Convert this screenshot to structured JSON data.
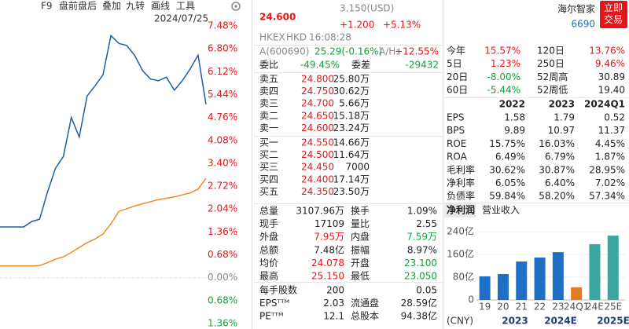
{
  "toolbar": {
    "items": [
      "F9",
      "盘前盘后",
      "叠加",
      "九转",
      "画线",
      "工具"
    ],
    "date": "2024/07/25"
  },
  "quote": {
    "price": "24.600",
    "change": "+1.200",
    "change_pct": "+5.13%",
    "usd": "3.150(USD)",
    "market": "HKEX",
    "currency": "HKD",
    "time": "16:08:28",
    "a_code": "A(600690)",
    "a_price": "25.29(-0.16%)",
    "ah_label": "A/H:",
    "ah_premium": "+12.55%",
    "wb_label": "委比",
    "wb": "-49.45%",
    "wc_label": "委差",
    "wc": "-29432"
  },
  "order_book": {
    "sell": [
      [
        "卖五",
        "24.800",
        "25.80万"
      ],
      [
        "卖四",
        "24.750",
        "30.62万"
      ],
      [
        "卖三",
        "24.700",
        "5.66万"
      ],
      [
        "卖二",
        "24.650",
        "15.18万"
      ],
      [
        "卖一",
        "24.600",
        "23.24万"
      ]
    ],
    "buy": [
      [
        "买一",
        "24.550",
        "14.66万"
      ],
      [
        "买二",
        "24.500",
        "11.64万"
      ],
      [
        "买三",
        "24.450",
        "7000"
      ],
      [
        "买四",
        "24.400",
        "17.14万"
      ],
      [
        "买五",
        "24.350",
        "23.50万"
      ]
    ]
  },
  "stats": {
    "rows": [
      [
        "总量",
        "3107.96万",
        "换手",
        "1.09%"
      ],
      [
        "现手",
        "17109",
        "量比",
        "2.55"
      ],
      [
        "外盘",
        "7.95万",
        "内盘",
        "7.59万"
      ],
      [
        "总额",
        "7.48亿",
        "振幅",
        "8.97%"
      ],
      [
        "均价",
        "24.078",
        "开盘",
        "23.100"
      ],
      [
        "最高",
        "25.150",
        "最低",
        "23.050"
      ],
      [
        "每手股数",
        "200",
        null,
        "0.05"
      ],
      [
        "EPSᵀᵀᴹ",
        "2.03",
        "流通盘",
        "28.59亿"
      ],
      [
        "PEᵀᵀᴹ",
        "12.1",
        "总股本",
        "94.38亿"
      ]
    ],
    "tones": [
      [
        "flat",
        "flat"
      ],
      [
        "flat",
        "flat"
      ],
      [
        "up",
        "down"
      ],
      [
        "flat",
        "flat"
      ],
      [
        "up",
        "down"
      ],
      [
        "up",
        "down"
      ],
      [
        "flat",
        "flat"
      ],
      [
        "flat",
        "flat"
      ],
      [
        "flat",
        "flat"
      ]
    ]
  },
  "stock": {
    "name": "海尔智家",
    "code": "6690",
    "trade_button": "立即交易"
  },
  "performance": {
    "rows": [
      [
        "今年",
        "15.57%",
        "120日",
        "13.76%"
      ],
      [
        "5日",
        "1.23%",
        "250日",
        "9.46%"
      ],
      [
        "20日",
        "-8.00%",
        "52周高",
        "30.89"
      ],
      [
        "60日",
        "-5.44%",
        "52周低",
        "19.40"
      ]
    ],
    "tones": [
      [
        "up",
        "up"
      ],
      [
        "up",
        "up"
      ],
      [
        "down",
        "flat"
      ],
      [
        "down",
        "flat"
      ]
    ]
  },
  "financials": {
    "header": [
      "2022",
      "2023",
      "2024Q1"
    ],
    "rows": [
      [
        "EPS",
        "1.58",
        "1.79",
        "0.52"
      ],
      [
        "BPS",
        "9.89",
        "10.97",
        "11.37"
      ],
      [
        "ROE",
        "15.75%",
        "16.03%",
        "4.45%"
      ],
      [
        "ROA",
        "6.49%",
        "6.79%",
        "1.87%"
      ],
      [
        "毛利率",
        "30.62%",
        "30.87%",
        "28.95%"
      ],
      [
        "净利率",
        "6.05%",
        "6.40%",
        "7.02%"
      ],
      [
        "负债率",
        "59.84%",
        "58.20%",
        "57.34%"
      ]
    ]
  },
  "tabs": [
    "净利润",
    "营业收入"
  ],
  "footer_labels": [
    "(CNY)",
    "2023",
    "2024E",
    "2025E"
  ],
  "chart_data": [
    {
      "type": "line",
      "ylim": [
        -1.36,
        7.48
      ],
      "yticks": [
        {
          "value": 7.48,
          "label": "7.48%"
        },
        {
          "value": 6.8,
          "label": "6.80%"
        },
        {
          "value": 6.12,
          "label": "6.12%"
        },
        {
          "value": 5.44,
          "label": "5.44%"
        },
        {
          "value": 4.76,
          "label": "4.76%"
        },
        {
          "value": 4.08,
          "label": "4.08%"
        },
        {
          "value": 3.4,
          "label": "3.40%"
        },
        {
          "value": 2.72,
          "label": "2.72%"
        },
        {
          "value": 2.04,
          "label": "2.04%"
        },
        {
          "value": 1.36,
          "label": "1.36%"
        },
        {
          "value": 0.68,
          "label": "0.68%"
        },
        {
          "value": 0,
          "label": "0.00%"
        },
        {
          "value": -0.68,
          "label": "0.68%"
        },
        {
          "value": -1.36,
          "label": "1.36%"
        }
      ],
      "series": [
        {
          "color": "#1d5ea8",
          "values": [
            1.51,
            1.51,
            1.51,
            1.51,
            1.67,
            1.74,
            2.55,
            3.25,
            3.6,
            4.76,
            4.18,
            5.4,
            5.7,
            6.03,
            7.19,
            6.96,
            6.9,
            6.6,
            6.15,
            5.9,
            5.85,
            5.96,
            5.57,
            5.85,
            6.2,
            6.61,
            5.15
          ]
        },
        {
          "color": "#f08a24",
          "values": [
            0.35,
            0.35,
            0.35,
            0.35,
            0.35,
            0.36,
            0.45,
            0.55,
            0.62,
            0.75,
            0.9,
            1.04,
            1.15,
            1.3,
            1.6,
            1.97,
            2.05,
            2.13,
            2.2,
            2.26,
            2.32,
            2.36,
            2.4,
            2.46,
            2.52,
            2.63,
            2.95
          ]
        }
      ]
    },
    {
      "type": "bar",
      "categories": [
        "19",
        "20",
        "21",
        "22",
        "23",
        "24Q1",
        "24E",
        "25E"
      ],
      "values": [
        83,
        91,
        135,
        149,
        168,
        44,
        196,
        226
      ],
      "colors": [
        "#1f6fc5",
        "#1f6fc5",
        "#1f6fc5",
        "#1f6fc5",
        "#1f6fc5",
        "#e87a1e",
        "#3aa6a0",
        "#3aa6a0"
      ],
      "ylim": [
        0,
        240
      ],
      "yticks": [
        0,
        {
          "value": 80,
          "label": "80亿"
        },
        {
          "value": 160,
          "label": "160亿"
        },
        {
          "value": 240,
          "label": "240亿"
        }
      ]
    }
  ]
}
